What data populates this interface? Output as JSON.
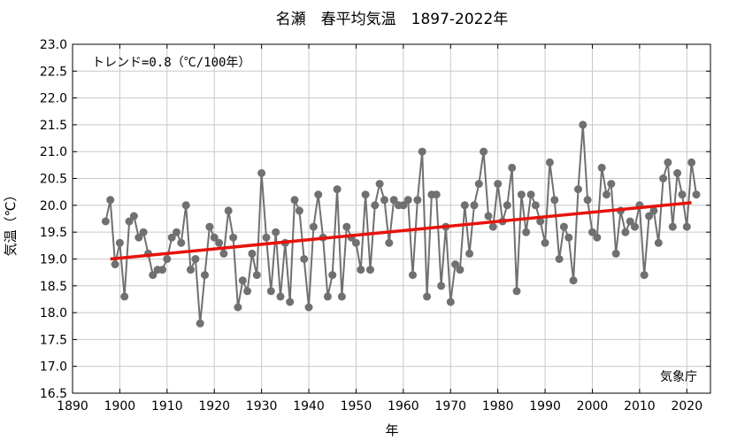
{
  "chart_data": {
    "type": "line",
    "title": "名瀬　春平均気温　1897-2022年",
    "xlabel": "年",
    "ylabel": "気温（℃）",
    "xlim": [
      1890,
      2025
    ],
    "ylim": [
      16.5,
      23.0
    ],
    "x_ticks": [
      1890,
      1900,
      1910,
      1920,
      1930,
      1940,
      1950,
      1960,
      1970,
      1980,
      1990,
      2000,
      2010,
      2020
    ],
    "y_ticks": [
      16.5,
      17.0,
      17.5,
      18.0,
      18.5,
      19.0,
      19.5,
      20.0,
      20.5,
      21.0,
      21.5,
      22.0,
      22.5,
      23.0
    ],
    "x_tick_labels": [
      "1890",
      "1900",
      "1910",
      "1920",
      "1930",
      "1940",
      "1950",
      "1960",
      "1970",
      "1980",
      "1990",
      "2000",
      "2010",
      "2020"
    ],
    "y_tick_labels": [
      "16.5",
      "17.0",
      "17.5",
      "18.0",
      "18.5",
      "19.0",
      "19.5",
      "20.0",
      "20.5",
      "21.0",
      "21.5",
      "22.0",
      "22.5",
      "23.0"
    ],
    "annotation": "トレンド=0.8（℃/100年）",
    "source": "気象庁",
    "grid": true,
    "series": [
      {
        "color": "#707070",
        "x": [
          1897,
          1898,
          1899,
          1900,
          1901,
          1902,
          1903,
          1904,
          1905,
          1906,
          1907,
          1908,
          1909,
          1910,
          1911,
          1912,
          1913,
          1914,
          1915,
          1916,
          1917,
          1918,
          1919,
          1920,
          1921,
          1922,
          1923,
          1924,
          1925,
          1926,
          1927,
          1928,
          1929,
          1930,
          1931,
          1932,
          1933,
          1934,
          1935,
          1936,
          1937,
          1938,
          1939,
          1940,
          1941,
          1942,
          1943,
          1944,
          1945,
          1946,
          1947,
          1948,
          1949,
          1950,
          1951,
          1952,
          1953,
          1954,
          1955,
          1956,
          1957,
          1958,
          1959,
          1960,
          1961,
          1962,
          1963,
          1964,
          1965,
          1966,
          1967,
          1968,
          1969,
          1970,
          1971,
          1972,
          1973,
          1974,
          1975,
          1976,
          1977,
          1978,
          1979,
          1980,
          1981,
          1982,
          1983,
          1984,
          1985,
          1986,
          1987,
          1988,
          1989,
          1990,
          1991,
          1992,
          1993,
          1994,
          1995,
          1996,
          1997,
          1998,
          1999,
          2000,
          2001,
          2002,
          2003,
          2004,
          2005,
          2006,
          2007,
          2008,
          2009,
          2010,
          2011,
          2012,
          2013,
          2014,
          2015,
          2016,
          2017,
          2018,
          2019,
          2020,
          2021,
          2022
        ],
        "y": [
          19.7,
          20.1,
          18.9,
          19.3,
          18.3,
          19.7,
          19.8,
          19.4,
          19.5,
          19.1,
          18.7,
          18.8,
          18.8,
          19.0,
          19.4,
          19.5,
          19.3,
          20.0,
          18.8,
          19.0,
          17.8,
          18.7,
          19.6,
          19.4,
          19.3,
          19.1,
          19.9,
          19.4,
          18.1,
          18.6,
          18.4,
          19.1,
          18.7,
          20.6,
          19.4,
          18.4,
          19.5,
          18.3,
          19.3,
          18.2,
          20.1,
          19.9,
          19.0,
          18.1,
          19.6,
          20.2,
          19.4,
          18.3,
          18.7,
          20.3,
          18.3,
          19.6,
          19.4,
          19.3,
          18.8,
          20.2,
          18.8,
          20.0,
          20.4,
          20.1,
          19.3,
          20.1,
          20.0,
          20.0,
          20.1,
          18.7,
          20.1,
          21.0,
          18.3,
          20.2,
          20.2,
          18.5,
          19.6,
          18.2,
          18.9,
          18.8,
          20.0,
          19.1,
          20.0,
          20.4,
          21.0,
          19.8,
          19.6,
          20.4,
          19.7,
          20.0,
          20.7,
          18.4,
          20.2,
          19.5,
          20.2,
          20.0,
          19.7,
          19.3,
          20.8,
          20.1,
          19.0,
          19.6,
          19.4,
          18.6,
          20.3,
          21.5,
          20.1,
          19.5,
          19.4,
          20.7,
          20.2,
          20.4,
          19.1,
          19.9,
          19.5,
          19.7,
          19.6,
          20.0,
          18.7,
          19.8,
          19.9,
          19.3,
          20.5,
          20.8,
          19.6,
          20.6,
          20.2,
          19.6,
          20.8,
          20.2
        ]
      }
    ],
    "trend": {
      "color": "#e8120c",
      "x": [
        1898,
        2021
      ],
      "y": [
        19.0,
        20.05
      ]
    }
  }
}
